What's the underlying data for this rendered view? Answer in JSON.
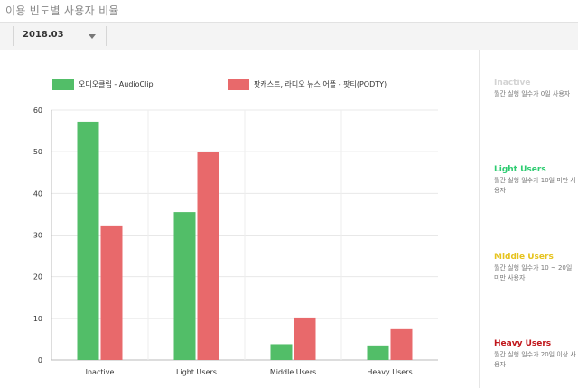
{
  "header": {
    "title": "이용 빈도별 사용자 비율"
  },
  "toolbar": {
    "period_value": "2018.03"
  },
  "legend": [
    {
      "label": "오디오클립 - AudioClip",
      "color": "#52be68"
    },
    {
      "label": "팟캐스트, 라디오 뉴스 어플 - 팟티(PODTY)",
      "color": "#e8696b"
    }
  ],
  "chart_data": {
    "type": "bar",
    "categories": [
      "Inactive",
      "Light Users",
      "Middle Users",
      "Heavy Users"
    ],
    "series": [
      {
        "name": "오디오클립 - AudioClip",
        "color": "#52be68",
        "values": [
          57.2,
          35.5,
          3.8,
          3.5
        ]
      },
      {
        "name": "팟캐스트, 라디오 뉴스 어플 - 팟티(PODTY)",
        "color": "#e8696b",
        "values": [
          32.3,
          50.0,
          10.2,
          7.4
        ]
      }
    ],
    "ylim": [
      0,
      60
    ],
    "yticks": [
      0,
      10,
      20,
      30,
      40,
      50,
      60
    ],
    "grid": true,
    "legend_position": "top"
  },
  "segments": [
    {
      "title": "Inactive",
      "desc": "월간 실행 일수가 0일 사용자",
      "color": "#d3d3d3"
    },
    {
      "title": "Light Users",
      "desc": "월간 실행 일수가 10일 미만 사용자",
      "color": "#2ecc71"
    },
    {
      "title": "Middle Users",
      "desc": "월간 실행 일수가 10 ~ 20일 미만 사용자",
      "color": "#e6c31e"
    },
    {
      "title": "Heavy Users",
      "desc": "월간 실행 일수가 20일 이상 사용자",
      "color": "#c0161b"
    }
  ]
}
